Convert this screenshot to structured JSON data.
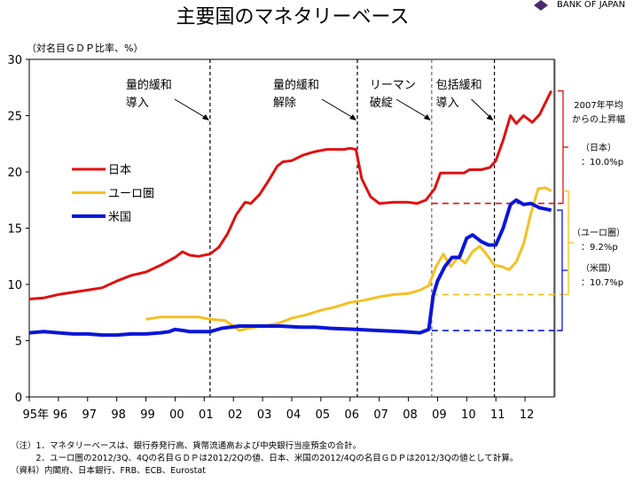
{
  "chart_data": {
    "type": "line",
    "title": "主要国のマネタリーベース",
    "ylabel": "（対名目ＧＤＰ比率、%）",
    "ylim": [
      0,
      30
    ],
    "yticks": [
      0,
      5,
      10,
      15,
      20,
      25,
      30
    ],
    "xlim": [
      1995,
      2013
    ],
    "xtick_labels": [
      "95年",
      "96",
      "97",
      "98",
      "99",
      "00",
      "01",
      "02",
      "03",
      "04",
      "05",
      "06",
      "07",
      "08",
      "09",
      "10",
      "11",
      "12"
    ],
    "grid": false,
    "legend_placement": "upper-left",
    "series": [
      {
        "name": "日本",
        "color": "#e01010",
        "points": [
          [
            1995,
            8.7
          ],
          [
            1995.5,
            8.8
          ],
          [
            1996,
            9.1
          ],
          [
            1996.5,
            9.3
          ],
          [
            1997,
            9.5
          ],
          [
            1997.5,
            9.7
          ],
          [
            1998,
            10.3
          ],
          [
            1998.5,
            10.8
          ],
          [
            1999,
            11.1
          ],
          [
            1999.5,
            11.7
          ],
          [
            2000,
            12.4
          ],
          [
            2000.25,
            12.9
          ],
          [
            2000.5,
            12.6
          ],
          [
            2000.8,
            12.5
          ],
          [
            2001.2,
            12.7
          ],
          [
            2001.5,
            13.3
          ],
          [
            2001.8,
            14.5
          ],
          [
            2002.1,
            16.2
          ],
          [
            2002.4,
            17.3
          ],
          [
            2002.6,
            17.2
          ],
          [
            2002.9,
            18.0
          ],
          [
            2003.2,
            19.2
          ],
          [
            2003.5,
            20.5
          ],
          [
            2003.7,
            20.9
          ],
          [
            2004,
            21.0
          ],
          [
            2004.4,
            21.5
          ],
          [
            2004.8,
            21.8
          ],
          [
            2005.2,
            22.0
          ],
          [
            2005.8,
            22.0
          ],
          [
            2006.0,
            22.1
          ],
          [
            2006.2,
            22.0
          ],
          [
            2006.4,
            19.4
          ],
          [
            2006.7,
            17.8
          ],
          [
            2007.0,
            17.2
          ],
          [
            2007.5,
            17.3
          ],
          [
            2008.0,
            17.3
          ],
          [
            2008.3,
            17.2
          ],
          [
            2008.6,
            17.5
          ],
          [
            2008.9,
            18.5
          ],
          [
            2009.1,
            19.9
          ],
          [
            2009.5,
            19.9
          ],
          [
            2009.9,
            19.9
          ],
          [
            2010.1,
            20.2
          ],
          [
            2010.5,
            20.2
          ],
          [
            2010.8,
            20.4
          ],
          [
            2011.0,
            21.0
          ],
          [
            2011.25,
            22.8
          ],
          [
            2011.5,
            25.0
          ],
          [
            2011.7,
            24.3
          ],
          [
            2011.95,
            25.0
          ],
          [
            2012.25,
            24.4
          ],
          [
            2012.5,
            25.1
          ],
          [
            2012.9,
            27.2
          ]
        ]
      },
      {
        "name": "ユーロ圏",
        "color": "#f5c020",
        "points": [
          [
            1999,
            6.9
          ],
          [
            1999.5,
            7.1
          ],
          [
            2000,
            7.1
          ],
          [
            2000.8,
            7.1
          ],
          [
            2001.2,
            6.9
          ],
          [
            2001.7,
            6.8
          ],
          [
            2002.0,
            6.3
          ],
          [
            2002.2,
            5.9
          ],
          [
            2002.5,
            6.1
          ],
          [
            2003.0,
            6.3
          ],
          [
            2003.5,
            6.5
          ],
          [
            2004.0,
            7.0
          ],
          [
            2004.5,
            7.3
          ],
          [
            2005.0,
            7.7
          ],
          [
            2005.5,
            8.0
          ],
          [
            2006.0,
            8.4
          ],
          [
            2006.5,
            8.6
          ],
          [
            2007.0,
            8.9
          ],
          [
            2007.5,
            9.1
          ],
          [
            2008.0,
            9.2
          ],
          [
            2008.4,
            9.5
          ],
          [
            2008.7,
            9.9
          ],
          [
            2008.95,
            11.6
          ],
          [
            2009.2,
            12.7
          ],
          [
            2009.45,
            11.6
          ],
          [
            2009.7,
            12.4
          ],
          [
            2009.95,
            11.9
          ],
          [
            2010.2,
            12.9
          ],
          [
            2010.45,
            13.4
          ],
          [
            2010.7,
            12.6
          ],
          [
            2010.95,
            11.7
          ],
          [
            2011.2,
            11.6
          ],
          [
            2011.45,
            11.3
          ],
          [
            2011.7,
            12.0
          ],
          [
            2011.95,
            13.6
          ],
          [
            2012.2,
            16.3
          ],
          [
            2012.45,
            18.5
          ],
          [
            2012.7,
            18.6
          ],
          [
            2012.9,
            18.3
          ]
        ]
      },
      {
        "name": "米国",
        "color": "#0a16d8",
        "points": [
          [
            1995,
            5.7
          ],
          [
            1995.5,
            5.8
          ],
          [
            1996,
            5.7
          ],
          [
            1996.5,
            5.6
          ],
          [
            1997,
            5.6
          ],
          [
            1997.5,
            5.5
          ],
          [
            1998,
            5.5
          ],
          [
            1998.5,
            5.6
          ],
          [
            1999,
            5.6
          ],
          [
            1999.5,
            5.7
          ],
          [
            1999.8,
            5.8
          ],
          [
            2000.0,
            6.0
          ],
          [
            2000.3,
            5.9
          ],
          [
            2000.5,
            5.8
          ],
          [
            2001.2,
            5.8
          ],
          [
            2001.6,
            6.1
          ],
          [
            2002.2,
            6.3
          ],
          [
            2003.0,
            6.3
          ],
          [
            2003.6,
            6.3
          ],
          [
            2004.3,
            6.2
          ],
          [
            2004.8,
            6.2
          ],
          [
            2005.3,
            6.1
          ],
          [
            2006.2,
            6.0
          ],
          [
            2007.0,
            5.9
          ],
          [
            2007.8,
            5.8
          ],
          [
            2008.4,
            5.7
          ],
          [
            2008.7,
            6.0
          ],
          [
            2008.85,
            9.0
          ],
          [
            2009.0,
            10.3
          ],
          [
            2009.25,
            11.6
          ],
          [
            2009.5,
            12.4
          ],
          [
            2009.75,
            12.4
          ],
          [
            2010.0,
            14.1
          ],
          [
            2010.2,
            14.4
          ],
          [
            2010.5,
            13.8
          ],
          [
            2010.75,
            13.5
          ],
          [
            2011.0,
            13.5
          ],
          [
            2011.25,
            15.0
          ],
          [
            2011.5,
            17.1
          ],
          [
            2011.7,
            17.5
          ],
          [
            2011.95,
            17.1
          ],
          [
            2012.2,
            17.2
          ],
          [
            2012.5,
            16.8
          ],
          [
            2012.9,
            16.6
          ]
        ]
      }
    ],
    "event_lines": [
      {
        "x": 2001.2,
        "label_lines": [
          "量的緩和",
          "導入"
        ]
      },
      {
        "x": 2006.25,
        "label_lines": [
          "量的緩和",
          "解除"
        ]
      },
      {
        "x": 2008.8,
        "label_lines": [
          "リーマン",
          "破綻"
        ]
      },
      {
        "x": 2010.95,
        "label_lines": [
          "包括緩和",
          "導入"
        ]
      }
    ],
    "reference_levels_2007_avg": [
      {
        "series": "日本",
        "value": 17.2
      },
      {
        "series": "ユーロ圏",
        "value": 9.1
      },
      {
        "series": "米国",
        "value": 5.9
      }
    ],
    "annotations": {
      "heading_lines": [
        "2007年平均",
        "からの上昇幅"
      ],
      "japan": {
        "name": "（日本）",
        "value": "：10.0%p"
      },
      "euro": {
        "name": "（ユーロ圏）",
        "value": "：9.2%p"
      },
      "us": {
        "name": "（米国）",
        "value": "：10.7%p"
      }
    }
  },
  "logo": {
    "text": "BANK OF JAPAN",
    "color": "#4a2a6a"
  },
  "notes": [
    "（注）1．マネタリーベースは、銀行券発行高、貨幣流通高および中央銀行当座預金の合計。",
    "　　　2．ユーロ圏の2012/3Q、4Qの名目ＧＤＰは2012/2Qの値、日本、米国の2012/4Qの名目ＧＤＰは2012/3Qの値として計算。",
    "（資料）内閣府、日本銀行、FRB、ECB、Eurostat"
  ]
}
